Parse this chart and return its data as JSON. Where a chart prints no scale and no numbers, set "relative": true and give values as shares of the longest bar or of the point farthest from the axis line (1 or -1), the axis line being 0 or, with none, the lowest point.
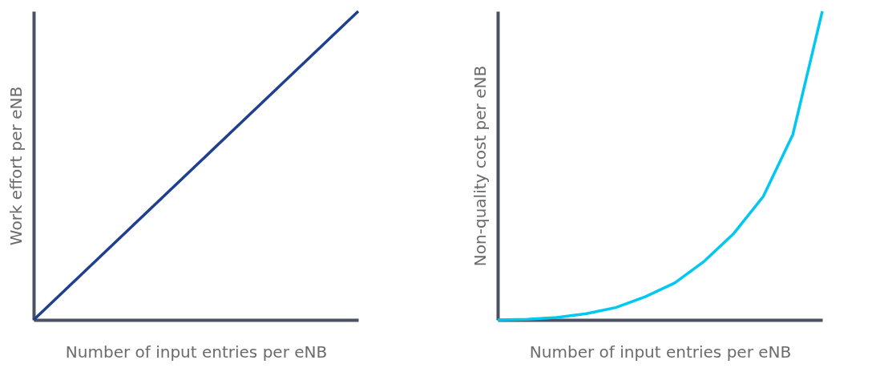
{
  "chart_data": [
    {
      "type": "line",
      "relative": true,
      "xlabel": "Number of input entries per eNB",
      "ylabel": "Work effort per eNB",
      "categories": [
        null,
        null,
        null,
        null,
        null,
        null,
        null,
        null,
        null,
        null,
        null
      ],
      "series": [
        {
          "color": "#1f3f8f",
          "values": [
            0,
            0.1,
            0.2,
            0.3,
            0.4,
            0.5,
            0.6,
            0.7,
            0.8,
            0.9,
            1
          ]
        }
      ]
    },
    {
      "type": "line",
      "relative": true,
      "xlabel": "Number of input entries per eNB",
      "ylabel": "Non-quality cost per eNB",
      "categories": [
        null,
        null,
        null,
        null,
        null,
        null,
        null,
        null,
        null,
        null,
        null,
        null
      ],
      "series": [
        {
          "color": "#00c8f0",
          "values": [
            0,
            0.002,
            0.008,
            0.02,
            0.04,
            0.075,
            0.12,
            0.19,
            0.28,
            0.4,
            0.6,
            1
          ]
        }
      ]
    }
  ]
}
